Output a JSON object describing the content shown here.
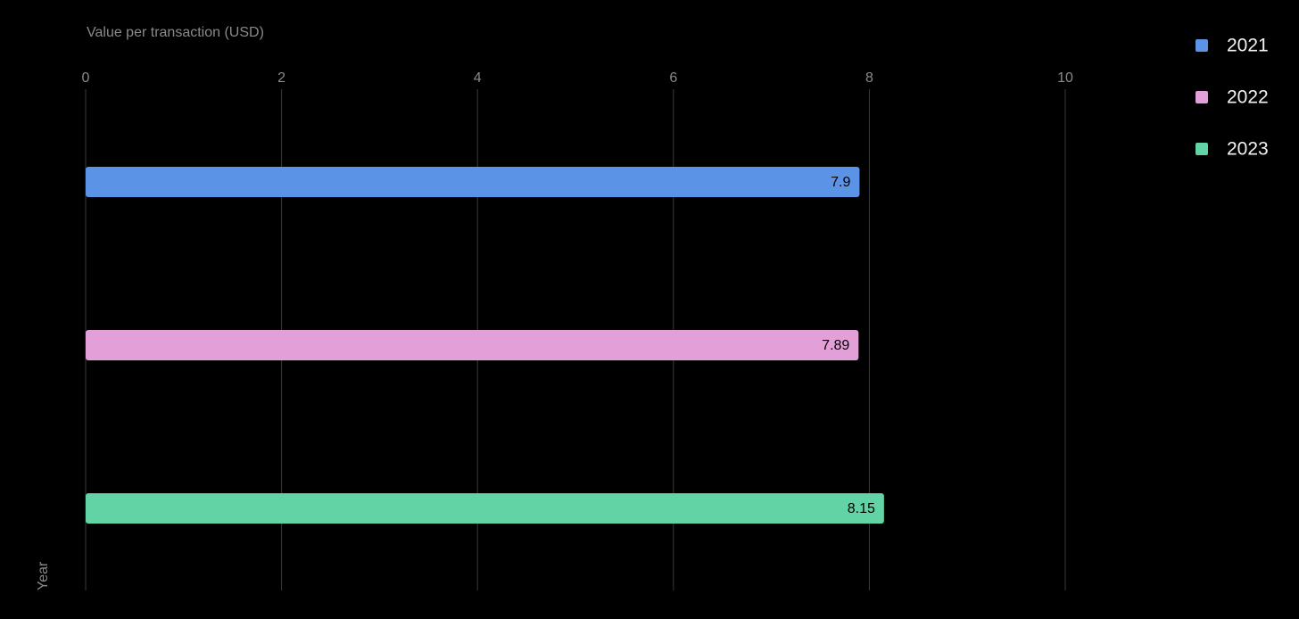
{
  "chart_data": {
    "type": "bar",
    "orientation": "horizontal",
    "x_label": "Value per transaction (USD)",
    "y_label": "Year",
    "categories": [
      null
    ],
    "series": [
      {
        "name": "2021",
        "color": "#5b93e6",
        "values": [
          7.9
        ]
      },
      {
        "name": "2022",
        "color": "#e3a0d8",
        "values": [
          7.89
        ]
      },
      {
        "name": "2023",
        "color": "#62d3a4",
        "values": [
          8.15
        ]
      }
    ],
    "xlim": [
      0,
      10
    ],
    "xticks": [
      0,
      2,
      4,
      6,
      8,
      10
    ],
    "grid": true,
    "legend": "top-right"
  }
}
